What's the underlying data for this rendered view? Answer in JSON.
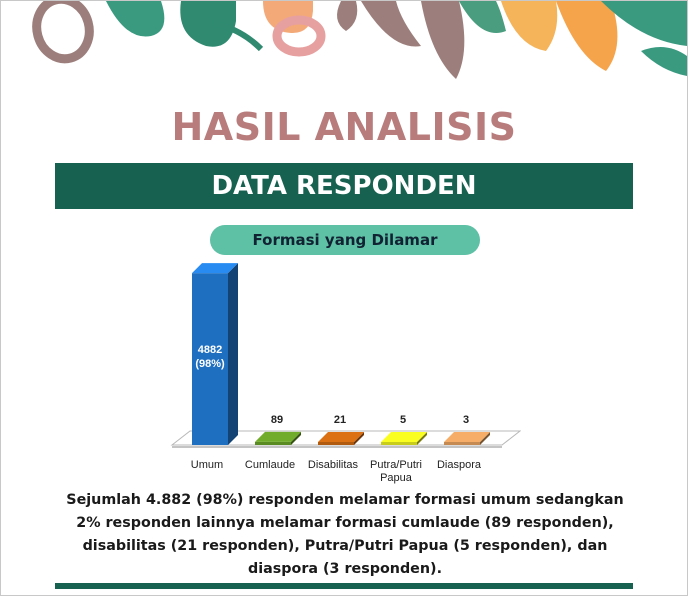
{
  "header": {
    "title": "HASIL ANALISIS",
    "band": "DATA RESPONDEN",
    "pill": "Formasi yang Dilamar"
  },
  "chart_data": {
    "type": "bar",
    "title": "Formasi yang Dilamar",
    "categories": [
      "Umum",
      "Cumlaude",
      "Disabilitas",
      "Putra/Putri Papua",
      "Diaspora"
    ],
    "values": [
      4882,
      89,
      21,
      5,
      3
    ],
    "data_labels": [
      "4882 (98%)",
      "89",
      "21",
      "5",
      "3"
    ],
    "colors": [
      "#1f6fc1",
      "#5a8a22",
      "#b05a10",
      "#c8cc1a",
      "#c48a52"
    ],
    "xlabel": "",
    "ylabel": "",
    "grid": false,
    "legend": "none",
    "ylim": [
      0,
      5000
    ]
  },
  "description": "Sejumlah 4.882 (98%) responden melamar formasi umum sedangkan 2% responden lainnya melamar formasi cumlaude (89 responden), disabilitas (21 responden), Putra/Putri Papua (5 responden), dan diaspora (3 responden).",
  "palette": {
    "green": "#176150",
    "pill": "#5ec0a4",
    "title": "#b87c7c"
  }
}
